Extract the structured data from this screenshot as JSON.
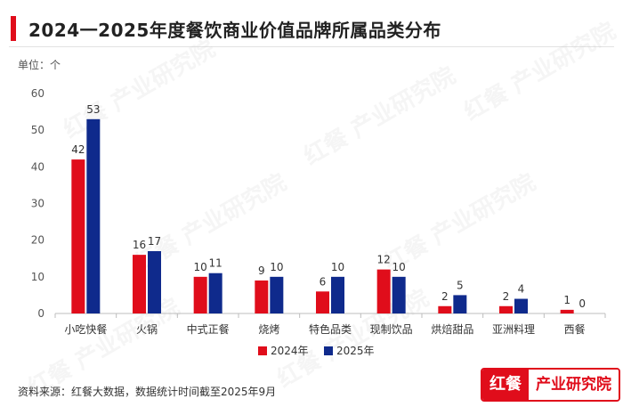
{
  "page": {
    "title": "2024一2025年度餐饮商业价值品牌所属品类分布",
    "unit": "单位：个",
    "source": "资料来源：红餐大数据，数据统计时间截至2025年9月",
    "brand_left": "红餐",
    "brand_right": "产业研究院",
    "watermark": "红餐 产业研究院"
  },
  "chart_data": {
    "type": "bar",
    "title": "2024一2025年度餐饮商业价值品牌所属品类分布",
    "ylabel": "单位：个",
    "xlabel": "",
    "ylim": [
      0,
      60
    ],
    "yticks": [
      0,
      10,
      20,
      30,
      40,
      50,
      60
    ],
    "grid": false,
    "legend_position": "bottom",
    "categories": [
      "小吃快餐",
      "火锅",
      "中式正餐",
      "烧烤",
      "特色品类",
      "现制饮品",
      "烘焙甜品",
      "亚洲料理",
      "西餐"
    ],
    "series": [
      {
        "name": "2024年",
        "color": "#e00d1b",
        "values": [
          42,
          16,
          10,
          9,
          6,
          12,
          2,
          2,
          1
        ]
      },
      {
        "name": "2025年",
        "color": "#0f2a8c",
        "values": [
          53,
          17,
          11,
          10,
          10,
          10,
          5,
          4,
          0
        ]
      }
    ]
  }
}
